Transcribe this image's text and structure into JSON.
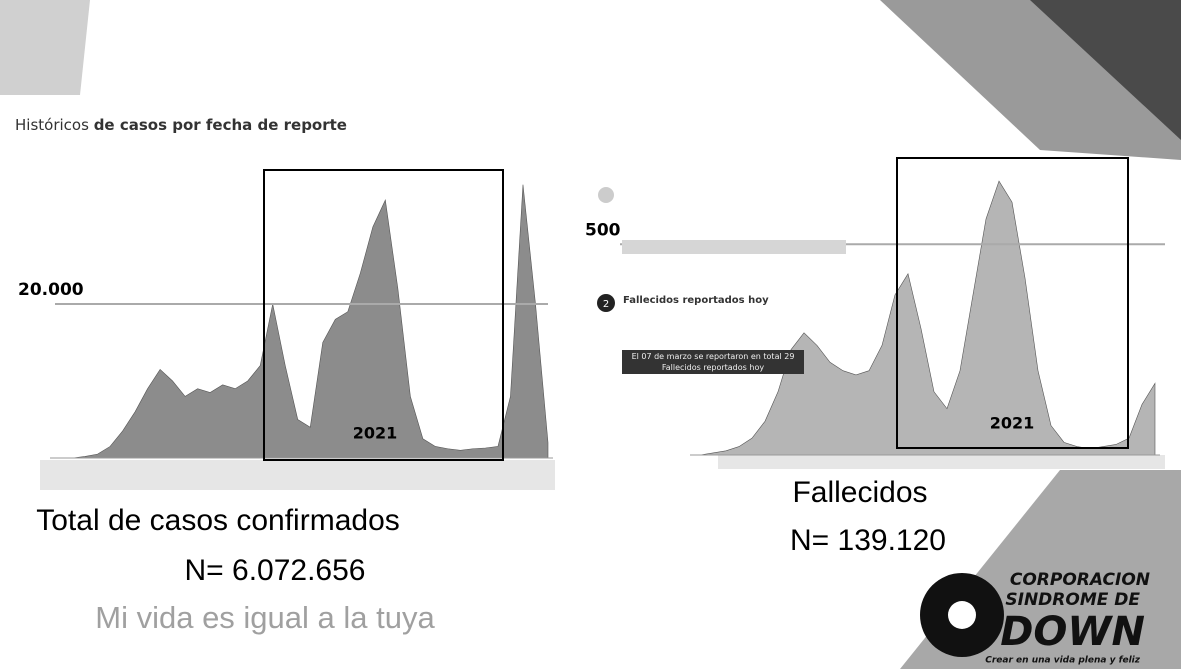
{
  "header": {
    "title_regular": "Históricos",
    "title_bold": "de casos por fecha de reporte"
  },
  "chart_data": [
    {
      "type": "area",
      "color": "#8c8c8c",
      "categories": [
        null,
        null,
        null,
        null,
        null,
        null,
        null,
        null,
        null,
        null,
        null,
        null,
        null,
        null,
        null,
        null,
        null,
        null,
        null,
        null,
        null,
        null,
        null,
        null,
        null,
        null,
        null,
        null,
        null,
        null,
        null,
        null,
        null,
        null,
        null,
        null,
        null,
        null,
        null,
        null
      ],
      "values": [
        0,
        0,
        200,
        500,
        1500,
        3500,
        6000,
        9000,
        11500,
        10000,
        8000,
        9000,
        8500,
        9500,
        9000,
        10000,
        12000,
        20000,
        12000,
        5000,
        4000,
        15000,
        18000,
        19000,
        24000,
        30000,
        33500,
        22000,
        8000,
        2500,
        1500,
        1200,
        1000,
        1200,
        1300,
        1500,
        8000,
        35500,
        20000,
        2000
      ],
      "ylim": [
        0,
        40000
      ],
      "reference_line": {
        "value": 20000,
        "label": "20.000"
      },
      "highlight_label": "2021"
    },
    {
      "type": "area",
      "color": "#b5b5b5",
      "categories": [
        null,
        null,
        null,
        null,
        null,
        null,
        null,
        null,
        null,
        null,
        null,
        null,
        null,
        null,
        null,
        null,
        null,
        null,
        null,
        null,
        null,
        null,
        null,
        null,
        null,
        null,
        null,
        null,
        null,
        null,
        null,
        null,
        null,
        null,
        null,
        null
      ],
      "values": [
        0,
        5,
        10,
        20,
        40,
        80,
        150,
        250,
        290,
        260,
        220,
        200,
        190,
        200,
        260,
        380,
        430,
        300,
        150,
        110,
        200,
        380,
        560,
        650,
        600,
        420,
        200,
        70,
        30,
        20,
        15,
        20,
        25,
        40,
        120,
        170
      ],
      "ylim": [
        0,
        700
      ],
      "reference_line": {
        "value": 500,
        "label": "500"
      },
      "highlight_label": "2021"
    }
  ],
  "overlay": {
    "step": "2",
    "heading": "Fallecidos reportados hoy",
    "note": "El 07 de marzo se reportaron en total 29 Fallecidos reportados hoy"
  },
  "captions": {
    "left_title": "Total de casos confirmados",
    "left_n": "N= 6.072.656",
    "right_title": "Fallecidos",
    "right_n": "N= 139.120"
  },
  "footer": "Mi vida es igual a la tuya",
  "logo": {
    "line1": "CORPORACION",
    "line2": "SINDROME DE",
    "line3": "DOWN",
    "tagline": "Crear en una vida plena y feliz"
  }
}
